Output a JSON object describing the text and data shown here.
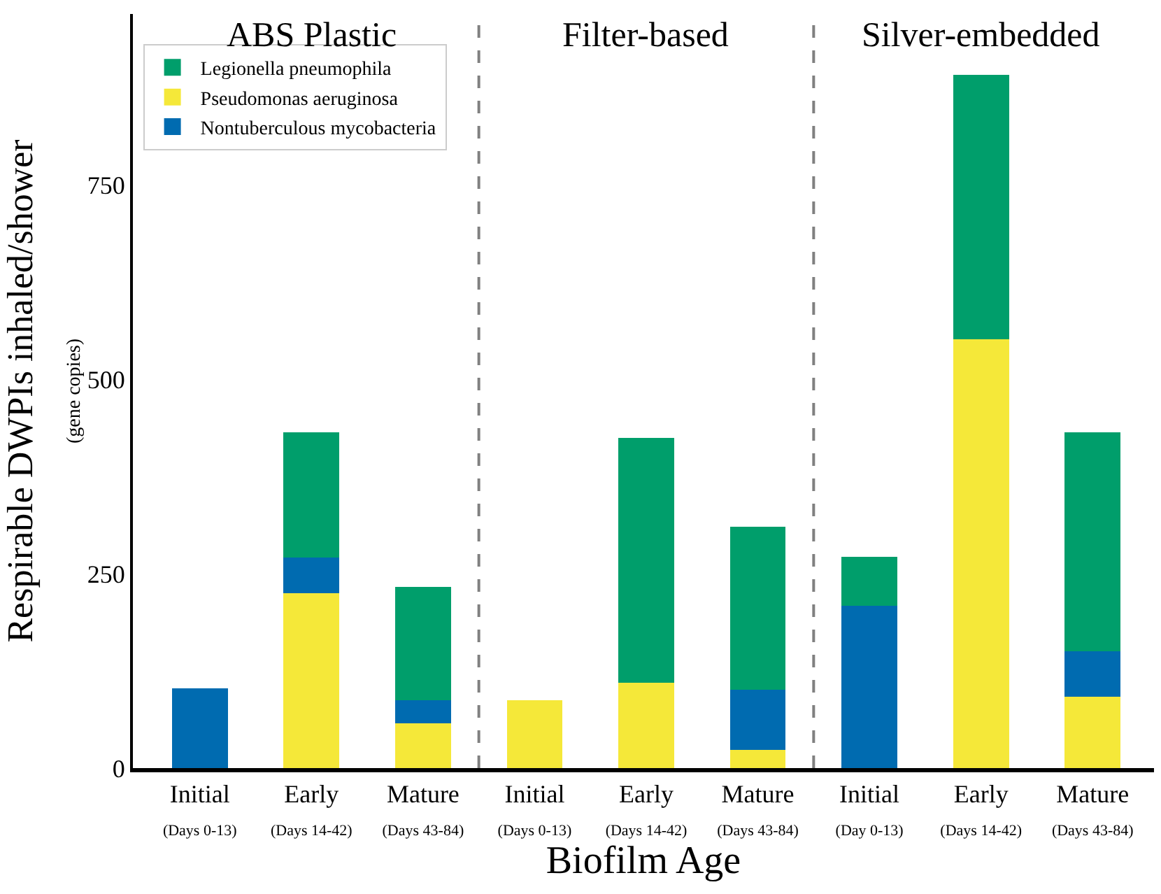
{
  "chart_data": {
    "type": "bar",
    "stacked": true,
    "xlabel": "Biofilm Age",
    "ylabel": "Respirable DWPIs inhaled/shower\n(gene copies)",
    "categories": [
      "Initial\n(Days 0-13)",
      "Early\n(Days 14-42)",
      "Mature\n(Days 43-84)",
      "Initial\n(Days 0-13)",
      "Early\n(Days 14-42)",
      "Mature\n(Days 43-84)",
      "Initial\n(Day 0-13)",
      "Early\n(Days 14-42)",
      "Mature\n(Days 43-84)"
    ],
    "series": [
      {
        "name": "Pseudomonas aeruginosa",
        "color": "#f5e839",
        "values": [
          null,
          225,
          58,
          87,
          110,
          23,
          null,
          552,
          92
        ]
      },
      {
        "name": "Nontuberculous mycobacteria",
        "color": "#006bb0",
        "values": [
          103,
          46,
          29,
          null,
          null,
          78,
          209,
          null,
          58
        ]
      },
      {
        "name": "Legionella pneumophila",
        "color": "#009e6b",
        "values": [
          null,
          161,
          146,
          null,
          315,
          209,
          63,
          340,
          282
        ]
      }
    ],
    "ylim": [
      0,
      970
    ],
    "yticks": [
      0,
      250,
      500,
      750
    ],
    "grid": false,
    "legend": "top left",
    "annotations": [
      "ABS Plastic",
      "Filter-based",
      "Silver-embedded"
    ]
  }
}
